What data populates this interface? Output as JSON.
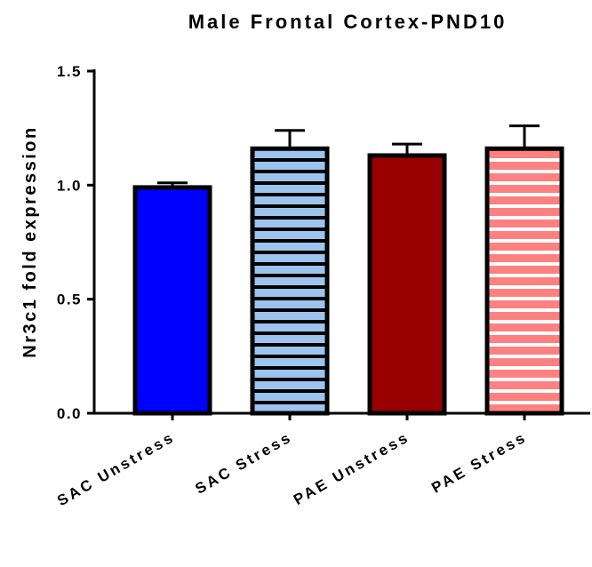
{
  "chart_data": {
    "type": "bar",
    "title": "Male Frontal Cortex-PND10",
    "xlabel": "",
    "ylabel": "Nr3c1 fold expression",
    "ylim": [
      0.0,
      1.5
    ],
    "yticks": [
      0.0,
      0.5,
      1.0,
      1.5
    ],
    "ytick_labels": [
      "0.0",
      "0.5",
      "1.0",
      "1.5"
    ],
    "grid": false,
    "categories": [
      "SAC Unstress",
      "SAC Stress",
      "PAE Unstress",
      "PAE Stress"
    ],
    "values": [
      0.99,
      1.16,
      1.13,
      1.16
    ],
    "errors": [
      0.02,
      0.08,
      0.05,
      0.1
    ],
    "fills": [
      {
        "color": "#0000ff",
        "pattern": "solid",
        "stripe": null
      },
      {
        "color": "#9cc4ee",
        "pattern": "horizontal-stripes",
        "stripe": "#000000"
      },
      {
        "color": "#990000",
        "pattern": "solid",
        "stripe": null
      },
      {
        "color": "#ff8080",
        "pattern": "horizontal-stripes",
        "stripe": "#ffffff"
      }
    ]
  }
}
